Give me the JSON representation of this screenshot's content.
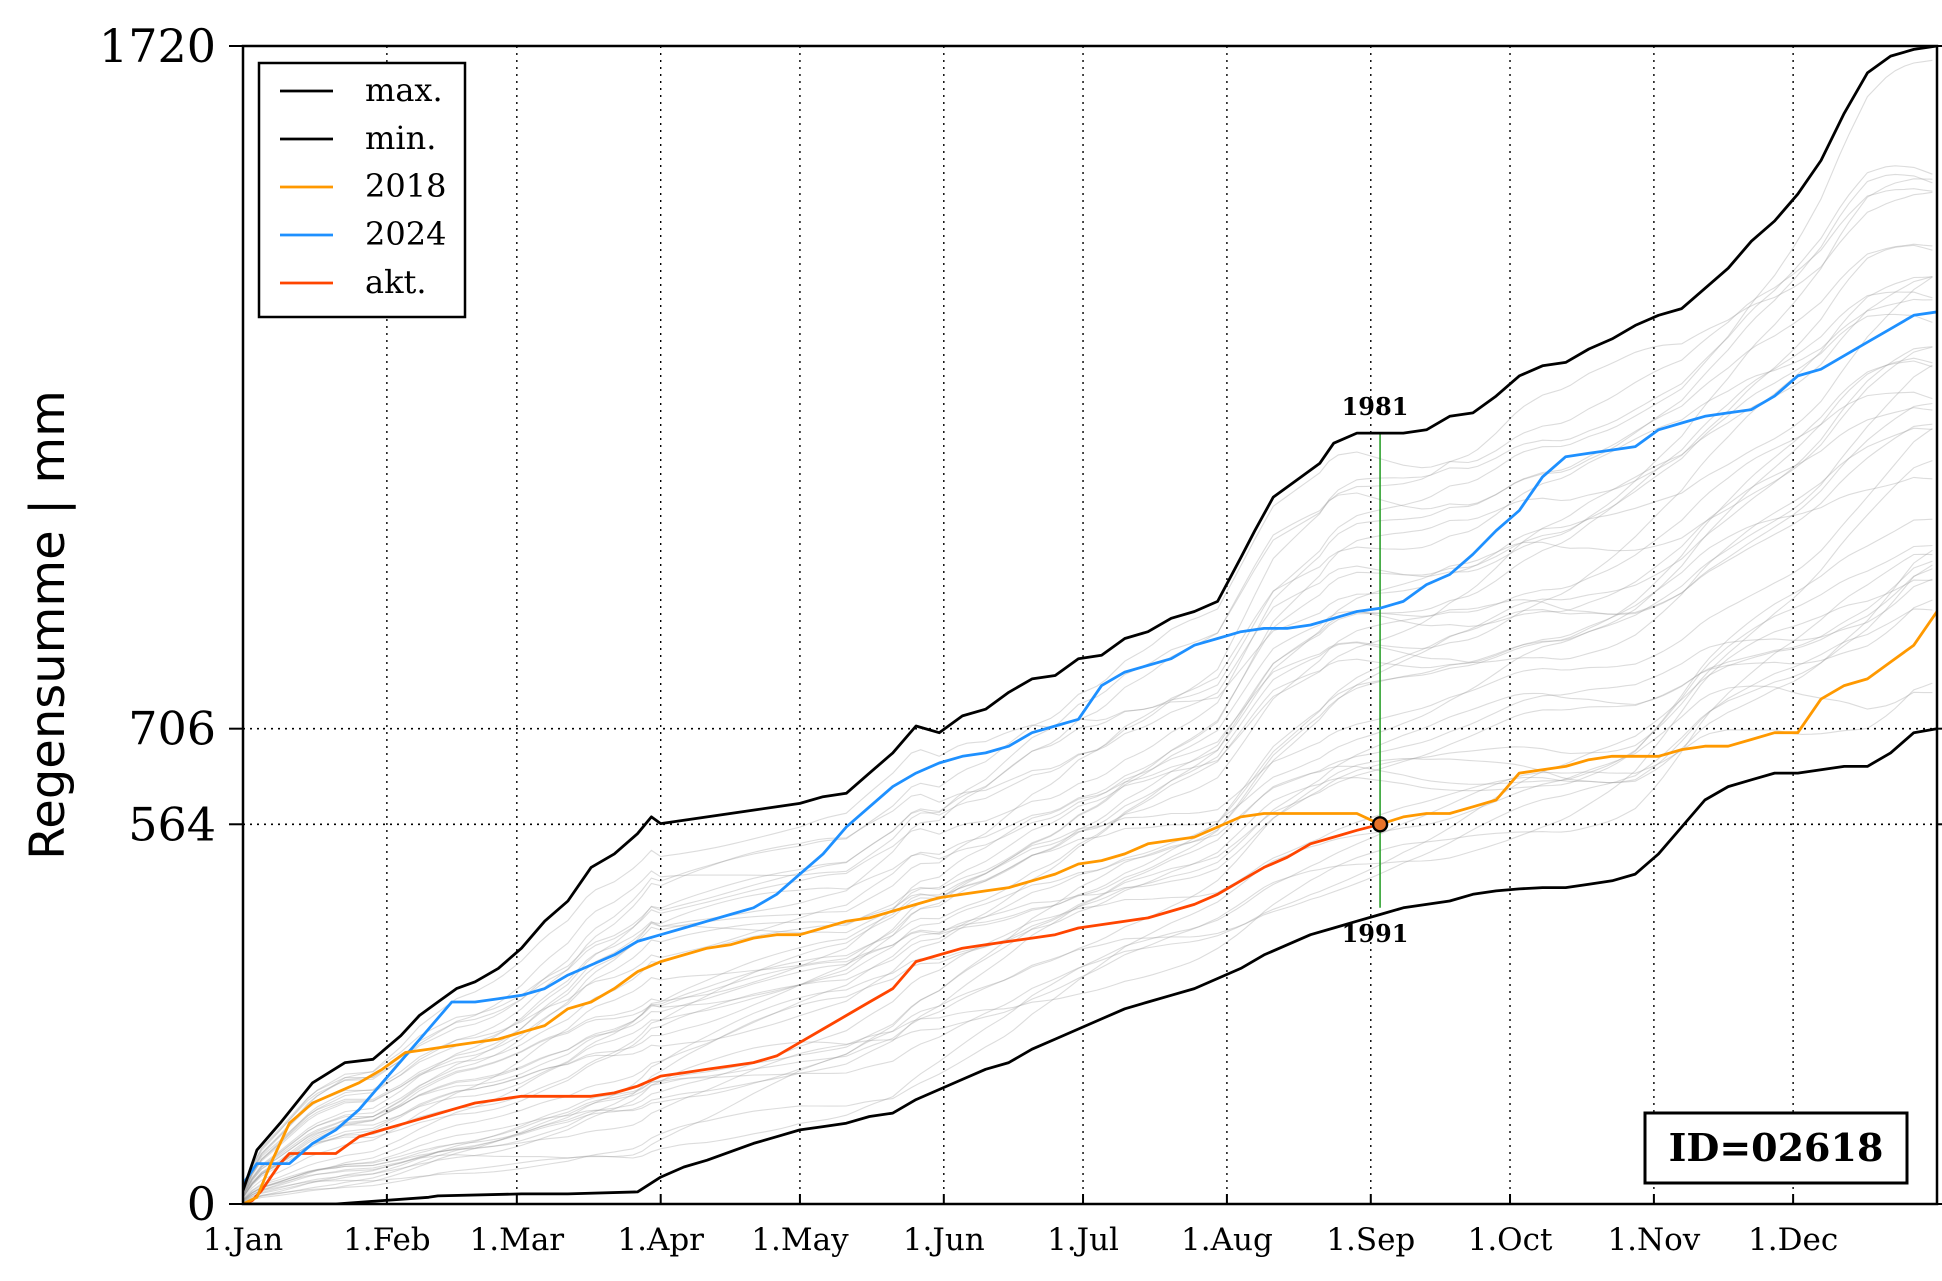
{
  "chart_data": {
    "type": "line",
    "ylabel": "Regensumme | mm",
    "xlim_days": [
      0,
      365
    ],
    "ylim": [
      0,
      1720
    ],
    "x_ticks": [
      {
        "day": 0,
        "label": "1.Jan"
      },
      {
        "day": 31,
        "label": "1.Feb"
      },
      {
        "day": 59,
        "label": "1.Mar"
      },
      {
        "day": 90,
        "label": "1.Apr"
      },
      {
        "day": 120,
        "label": "1.May"
      },
      {
        "day": 151,
        "label": "1.Jun"
      },
      {
        "day": 181,
        "label": "1.Jul"
      },
      {
        "day": 212,
        "label": "1.Aug"
      },
      {
        "day": 243,
        "label": "1.Sep"
      },
      {
        "day": 273,
        "label": "1.Oct"
      },
      {
        "day": 304,
        "label": "1.Nov"
      },
      {
        "day": 334,
        "label": "1.Dec"
      }
    ],
    "y_ticks": [
      {
        "value": 0,
        "label": "0"
      },
      {
        "value": 564,
        "label": "564"
      },
      {
        "value": 706,
        "label": "706"
      },
      {
        "value": 1720,
        "label": "1720"
      }
    ],
    "reference_lines": [
      564,
      706
    ],
    "current_day": 245,
    "current_value": 564,
    "max_year_label": "1981",
    "max_year_value": 1145,
    "min_year_label": "1991",
    "min_year_value": 440,
    "legend_position": "top-left",
    "id_label": "ID=02618",
    "series": [
      {
        "name": "max.",
        "color": "#000000",
        "x": [
          0,
          3,
          8,
          15,
          22,
          28,
          34,
          38,
          42,
          46,
          50,
          55,
          60,
          65,
          70,
          75,
          80,
          85,
          88,
          90,
          95,
          100,
          105,
          110,
          115,
          120,
          125,
          130,
          135,
          140,
          145,
          150,
          155,
          160,
          165,
          170,
          175,
          180,
          185,
          190,
          195,
          200,
          205,
          210,
          215,
          218,
          222,
          228,
          232,
          235,
          240,
          245,
          250,
          255,
          260,
          265,
          270,
          275,
          280,
          285,
          290,
          295,
          300,
          305,
          310,
          315,
          320,
          325,
          330,
          335,
          340,
          345,
          350,
          355,
          360,
          365
        ],
        "values": [
          20,
          80,
          120,
          180,
          210,
          215,
          250,
          280,
          300,
          320,
          330,
          350,
          380,
          420,
          450,
          500,
          520,
          550,
          575,
          565,
          570,
          575,
          580,
          585,
          590,
          595,
          605,
          610,
          640,
          670,
          710,
          700,
          725,
          735,
          760,
          780,
          785,
          810,
          815,
          840,
          850,
          870,
          880,
          895,
          960,
          1000,
          1050,
          1080,
          1100,
          1130,
          1145,
          1145,
          1145,
          1150,
          1170,
          1175,
          1200,
          1230,
          1245,
          1250,
          1270,
          1285,
          1305,
          1320,
          1330,
          1360,
          1390,
          1430,
          1460,
          1500,
          1550,
          1620,
          1680,
          1705,
          1715,
          1720
        ]
      },
      {
        "name": "min.",
        "color": "#000000",
        "x": [
          0,
          20,
          30,
          40,
          42,
          60,
          65,
          70,
          85,
          90,
          95,
          100,
          110,
          115,
          120,
          125,
          130,
          135,
          140,
          145,
          150,
          155,
          160,
          165,
          170,
          175,
          180,
          185,
          190,
          195,
          200,
          205,
          210,
          215,
          220,
          225,
          230,
          235,
          240,
          245,
          250,
          255,
          260,
          265,
          270,
          275,
          280,
          285,
          290,
          295,
          300,
          305,
          310,
          315,
          320,
          325,
          330,
          335,
          340,
          345,
          350,
          355,
          360,
          365
        ],
        "values": [
          0,
          0,
          5,
          10,
          12,
          15,
          15,
          15,
          18,
          40,
          55,
          65,
          90,
          100,
          110,
          115,
          120,
          130,
          135,
          155,
          170,
          185,
          200,
          210,
          230,
          245,
          260,
          275,
          290,
          300,
          310,
          320,
          335,
          350,
          370,
          385,
          400,
          410,
          420,
          430,
          440,
          445,
          450,
          460,
          465,
          468,
          470,
          470,
          475,
          480,
          490,
          520,
          560,
          600,
          620,
          630,
          640,
          640,
          645,
          650,
          650,
          670,
          700,
          706
        ]
      },
      {
        "name": "2018",
        "color": "#ff9900",
        "x": [
          0,
          3,
          6,
          10,
          15,
          20,
          25,
          30,
          35,
          40,
          45,
          50,
          55,
          60,
          65,
          70,
          75,
          80,
          85,
          90,
          95,
          100,
          105,
          110,
          115,
          120,
          125,
          130,
          135,
          140,
          145,
          150,
          155,
          160,
          165,
          170,
          175,
          180,
          185,
          190,
          195,
          200,
          205,
          210,
          215,
          220,
          225,
          230,
          235,
          240,
          245,
          250,
          255,
          260,
          265,
          270,
          275,
          280,
          285,
          290,
          295,
          300,
          305,
          310,
          315,
          320,
          325,
          330,
          335,
          340,
          345,
          350,
          355,
          360,
          365
        ],
        "values": [
          0,
          10,
          60,
          120,
          150,
          165,
          180,
          200,
          225,
          230,
          235,
          240,
          245,
          255,
          265,
          290,
          300,
          320,
          345,
          360,
          370,
          380,
          385,
          395,
          400,
          400,
          410,
          420,
          425,
          435,
          445,
          455,
          460,
          465,
          470,
          480,
          490,
          505,
          510,
          520,
          535,
          540,
          545,
          560,
          575,
          580,
          580,
          580,
          580,
          580,
          564,
          575,
          580,
          580,
          590,
          600,
          640,
          645,
          650,
          660,
          665,
          665,
          665,
          675,
          680,
          680,
          690,
          700,
          700,
          750,
          770,
          780,
          805,
          830,
          880
        ]
      },
      {
        "name": "2024",
        "color": "#1e90ff",
        "x": [
          0,
          3,
          6,
          10,
          15,
          20,
          25,
          30,
          35,
          40,
          45,
          50,
          55,
          60,
          65,
          70,
          75,
          80,
          85,
          90,
          95,
          100,
          105,
          110,
          115,
          120,
          125,
          130,
          135,
          140,
          145,
          150,
          155,
          160,
          165,
          170,
          175,
          180,
          185,
          190,
          195,
          200,
          205,
          210,
          215,
          220,
          225,
          230,
          235,
          240,
          245,
          250,
          255,
          260,
          265,
          270,
          275,
          280,
          285,
          290,
          295,
          300,
          305,
          310,
          315,
          320,
          325,
          330,
          335,
          340,
          345,
          350,
          355,
          360,
          365
        ],
        "values": [
          30,
          60,
          60,
          60,
          90,
          110,
          140,
          180,
          220,
          260,
          300,
          300,
          305,
          310,
          320,
          340,
          355,
          370,
          390,
          400,
          410,
          420,
          430,
          440,
          460,
          490,
          520,
          560,
          590,
          620,
          640,
          655,
          665,
          670,
          680,
          700,
          710,
          720,
          770,
          790,
          800,
          810,
          830,
          840,
          850,
          855,
          855,
          860,
          870,
          880,
          885,
          895,
          920,
          935,
          965,
          1000,
          1030,
          1080,
          1110,
          1115,
          1120,
          1125,
          1150,
          1160,
          1170,
          1175,
          1180,
          1200,
          1230,
          1240,
          1260,
          1280,
          1300,
          1320,
          1325
        ]
      },
      {
        "name": "akt.",
        "color": "#ff4500",
        "x": [
          0,
          2,
          4,
          6,
          8,
          10,
          15,
          20,
          25,
          30,
          35,
          40,
          45,
          50,
          55,
          60,
          65,
          70,
          75,
          80,
          85,
          90,
          95,
          100,
          105,
          110,
          115,
          120,
          125,
          130,
          135,
          140,
          145,
          150,
          155,
          160,
          165,
          170,
          175,
          180,
          185,
          190,
          195,
          200,
          205,
          210,
          215,
          220,
          225,
          230,
          235,
          240,
          245
        ],
        "values": [
          0,
          5,
          20,
          40,
          60,
          75,
          75,
          75,
          100,
          110,
          120,
          130,
          140,
          150,
          155,
          160,
          160,
          160,
          160,
          165,
          175,
          190,
          195,
          200,
          205,
          210,
          220,
          240,
          260,
          280,
          300,
          320,
          360,
          370,
          380,
          385,
          390,
          395,
          400,
          410,
          415,
          420,
          425,
          435,
          445,
          460,
          480,
          500,
          515,
          535,
          545,
          555,
          564
        ]
      }
    ]
  }
}
